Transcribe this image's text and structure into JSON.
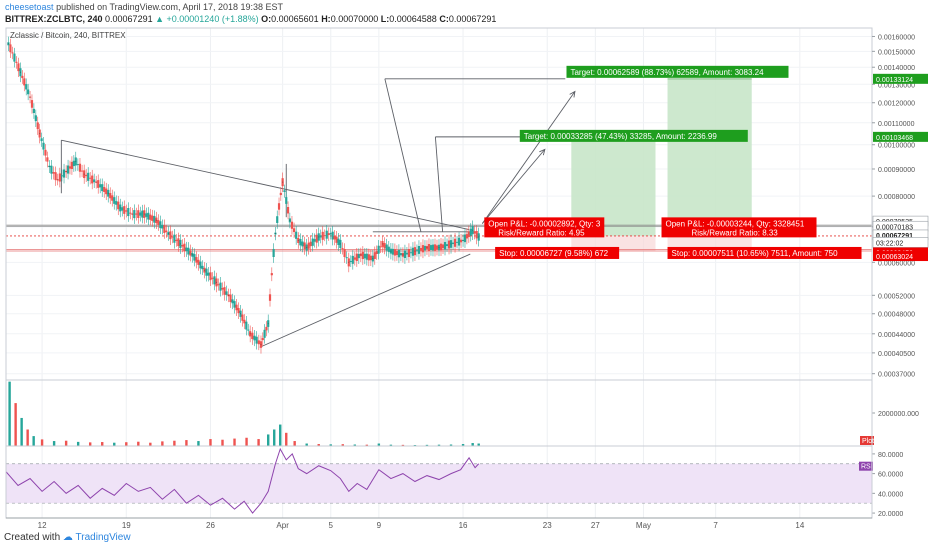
{
  "header": {
    "author": "cheesetoast",
    "published_text": "published on TradingView.com, April 17, 2018 19:38 EST",
    "ticker": "BITTREX:ZCLBTC, 240",
    "change": "▲ +0.00001240 (+1.88%)",
    "ohlc": {
      "o_label": "O:",
      "o": "0.00065601",
      "h_label": "H:",
      "h": "0.00070000",
      "l_label": "L:",
      "l": "0.00064588",
      "c_label": "C:",
      "c": "0.00067291"
    },
    "last": "0.00067291"
  },
  "pane_title": "Zclassic / Bitcoin, 240, BITTREX",
  "footer": {
    "created_with": "Created with",
    "brand": "TradingView"
  },
  "colors": {
    "up": "#26a69a",
    "down": "#ef5350",
    "profit_zone": "#c8e6c9",
    "stop_label": "#ef0000",
    "target_label": "#1e9e1e",
    "rsi_band": "#efe3f7",
    "rsi_line": "#8e44ad"
  },
  "chart_data": [
    {
      "type": "line",
      "title": "Zclassic / Bitcoin, 240, BITTREX",
      "ylim": [
        0.00036,
        0.00166
      ],
      "y_ticks": [
        "0.00160000",
        "0.00150000",
        "0.00140000",
        "0.00130000",
        "0.00120000",
        "0.00110000",
        "0.00100000",
        "0.00090000",
        "0.00080000",
        "0.00070000",
        "0.00060000",
        "0.00052000",
        "0.00048000",
        "0.00044000",
        "0.00040500",
        "0.00037000"
      ],
      "y_tick_values": [
        0.0016,
        0.0015,
        0.0014,
        0.0013,
        0.0012,
        0.0011,
        0.001,
        0.0009,
        0.0008,
        0.0007,
        0.0006,
        0.00052,
        0.00048,
        0.00044,
        0.000405,
        0.00037
      ],
      "x_ticks": [
        "12",
        "19",
        "26",
        "Apr",
        "5",
        "9",
        "16",
        "23",
        "27",
        "May",
        "7",
        "14"
      ],
      "x_tick_days": [
        12,
        19,
        26,
        32,
        36,
        40,
        47,
        54,
        58,
        62,
        68,
        75
      ],
      "x_note": "days counted from March 1, 2018",
      "price_labels": [
        {
          "text": "0.00133124",
          "value": 0.00133124,
          "kind": "target"
        },
        {
          "text": "0.00103468",
          "value": 0.00103468,
          "kind": "target"
        },
        {
          "text": "0.00070535",
          "value": 0.00070535,
          "kind": "neutral"
        },
        {
          "text": "0.00070183",
          "value": 0.00070183,
          "kind": "neutral"
        },
        {
          "text": "0.00067291",
          "value": 0.00067291,
          "kind": "last"
        },
        {
          "text": "03:22:02",
          "value": 0.00066,
          "kind": "timer"
        },
        {
          "text": "0.00063450",
          "value": 0.0006345,
          "kind": "stop"
        },
        {
          "text": "0.00063024",
          "value": 0.00063024,
          "kind": "stop"
        }
      ],
      "price_series": [
        {
          "day": 9.2,
          "value": 0.00155
        },
        {
          "day": 10.2,
          "value": 0.00137
        },
        {
          "day": 11,
          "value": 0.00123
        },
        {
          "day": 11.8,
          "value": 0.00105
        },
        {
          "day": 12.6,
          "value": 0.00091
        },
        {
          "day": 13.3,
          "value": 0.00086
        },
        {
          "day": 14,
          "value": 0.00089
        },
        {
          "day": 14.8,
          "value": 0.00093
        },
        {
          "day": 15.5,
          "value": 0.00088
        },
        {
          "day": 16.5,
          "value": 0.00085
        },
        {
          "day": 17.5,
          "value": 0.00081
        },
        {
          "day": 18.5,
          "value": 0.00076
        },
        {
          "day": 19.5,
          "value": 0.00074
        },
        {
          "day": 20.5,
          "value": 0.00074
        },
        {
          "day": 21.5,
          "value": 0.00072
        },
        {
          "day": 22.5,
          "value": 0.00068
        },
        {
          "day": 23.5,
          "value": 0.00065
        },
        {
          "day": 24.5,
          "value": 0.00062
        },
        {
          "day": 25.5,
          "value": 0.00058
        },
        {
          "day": 26.5,
          "value": 0.00055
        },
        {
          "day": 27.5,
          "value": 0.00052
        },
        {
          "day": 28.5,
          "value": 0.00048
        },
        {
          "day": 29.3,
          "value": 0.00044
        },
        {
          "day": 30.2,
          "value": 0.00042
        },
        {
          "day": 30.8,
          "value": 0.00046
        },
        {
          "day": 31.4,
          "value": 0.00068
        },
        {
          "day": 32,
          "value": 0.00085
        },
        {
          "day": 32.6,
          "value": 0.00072
        },
        {
          "day": 33.3,
          "value": 0.00066
        },
        {
          "day": 34,
          "value": 0.00064
        },
        {
          "day": 35,
          "value": 0.00067
        },
        {
          "day": 36,
          "value": 0.00068
        },
        {
          "day": 36.8,
          "value": 0.00065
        },
        {
          "day": 37.5,
          "value": 0.0006
        },
        {
          "day": 38.5,
          "value": 0.00062
        },
        {
          "day": 39.5,
          "value": 0.00061
        },
        {
          "day": 40.3,
          "value": 0.00065
        },
        {
          "day": 41,
          "value": 0.00063
        },
        {
          "day": 42,
          "value": 0.00062
        },
        {
          "day": 43,
          "value": 0.00063
        },
        {
          "day": 44,
          "value": 0.00064
        },
        {
          "day": 45,
          "value": 0.00064
        },
        {
          "day": 46,
          "value": 0.00065
        },
        {
          "day": 47,
          "value": 0.00066
        },
        {
          "day": 47.8,
          "value": 0.00069
        },
        {
          "day": 48.3,
          "value": 0.00067
        }
      ],
      "drawings": {
        "trend_lines": [
          {
            "from_day": 13.6,
            "from_value": 0.00102,
            "to_day": 47.5,
            "to_value": 0.000692
          },
          {
            "from_day": 30.1,
            "from_value": 0.000415,
            "to_day": 47.6,
            "to_value": 0.000622
          },
          {
            "from_day": 13.6,
            "from_value": 0.00081,
            "to_day": 13.6,
            "to_value": 0.00102
          },
          {
            "from_day": 32.3,
            "from_value": 0.00073,
            "to_day": 32.3,
            "to_value": 0.00092
          }
        ],
        "measure_lines": [
          {
            "from_day": 40.5,
            "from_value": 0.00133124,
            "to_day": 55.5,
            "to_value": 0.00133124
          },
          {
            "from_day": 40.5,
            "from_value": 0.00133124,
            "to_day": 43.5,
            "to_value": 0.000685
          },
          {
            "from_day": 44.7,
            "from_value": 0.00103468,
            "to_day": 51.8,
            "to_value": 0.00103468
          },
          {
            "from_day": 44.7,
            "from_value": 0.00103468,
            "to_day": 45.3,
            "to_value": 0.000685
          },
          {
            "from_day": 39.5,
            "from_value": 0.000685,
            "to_day": 48,
            "to_value": 0.000685
          }
        ],
        "arrows": [
          {
            "from_day": 48.6,
            "from_value": 0.00071,
            "to_day": 53.8,
            "to_value": 0.00098
          },
          {
            "from_day": 48.6,
            "from_value": 0.00071,
            "to_day": 56.3,
            "to_value": 0.00126
          }
        ],
        "positions": [
          {
            "entry_from_day": 48.5,
            "entry_to_day": 63,
            "entry": 0.00067291,
            "target": 0.00103468,
            "stop": 0.00063024,
            "profit_from_day": 56,
            "profit_to_day": 63
          },
          {
            "entry_from_day": 63,
            "entry_to_day": 75.5,
            "entry": 0.00067291,
            "target": 0.00133124,
            "stop": 0.0006345,
            "profit_from_day": 64,
            "profit_to_day": 71
          }
        ],
        "horizontal_levels": [
          0.00070535,
          0.00070183,
          0.00067291,
          0.0006345,
          0.00063024
        ]
      },
      "annotations": {
        "target_1": "Target: 0.00033285 (47.43%) 33285, Amount: 2236.99",
        "target_2": "Target: 0.00062589 (88.73%) 62589, Amount: 3083.24",
        "open_pl_1": "Open P&L: -0.00002892, Qty: 3",
        "rr_1": "Risk/Reward Ratio: 4.95",
        "open_pl_2": "Open P&L: -0.00003244, Qty: 3328451",
        "rr_2": "Risk/Reward Ratio: 8.33",
        "stop_1": "Stop: 0.00006727 (9.58%) 672",
        "stop_2": "Stop: 0.00007511 (10.65%) 7511, Amount: 750"
      }
    },
    {
      "type": "bar",
      "title": "",
      "y_tick": "2000000.000",
      "y_tick_value": 2000000,
      "ylim": [
        0,
        4000000
      ],
      "badge": "Plot",
      "volume": [
        {
          "day": 9.3,
          "value": 3900000,
          "up": true
        },
        {
          "day": 9.8,
          "value": 2600000,
          "up": false
        },
        {
          "day": 10.3,
          "value": 1700000,
          "up": true
        },
        {
          "day": 10.8,
          "value": 1000000,
          "up": false
        },
        {
          "day": 11.3,
          "value": 600000,
          "up": true
        },
        {
          "day": 12,
          "value": 400000,
          "up": false
        },
        {
          "day": 13,
          "value": 300000,
          "up": true
        },
        {
          "day": 14,
          "value": 320000,
          "up": false
        },
        {
          "day": 15,
          "value": 250000,
          "up": true
        },
        {
          "day": 16,
          "value": 220000,
          "up": false
        },
        {
          "day": 17,
          "value": 240000,
          "up": false
        },
        {
          "day": 18,
          "value": 200000,
          "up": true
        },
        {
          "day": 19,
          "value": 230000,
          "up": false
        },
        {
          "day": 20,
          "value": 260000,
          "up": false
        },
        {
          "day": 21,
          "value": 200000,
          "up": false
        },
        {
          "day": 22,
          "value": 280000,
          "up": false
        },
        {
          "day": 23,
          "value": 320000,
          "up": false
        },
        {
          "day": 24,
          "value": 360000,
          "up": false
        },
        {
          "day": 25,
          "value": 300000,
          "up": true
        },
        {
          "day": 26,
          "value": 420000,
          "up": false
        },
        {
          "day": 27,
          "value": 380000,
          "up": false
        },
        {
          "day": 28,
          "value": 450000,
          "up": false
        },
        {
          "day": 29,
          "value": 500000,
          "up": false
        },
        {
          "day": 30,
          "value": 420000,
          "up": false
        },
        {
          "day": 30.8,
          "value": 700000,
          "up": true
        },
        {
          "day": 31.3,
          "value": 1000000,
          "up": true
        },
        {
          "day": 31.8,
          "value": 1300000,
          "up": true
        },
        {
          "day": 32.3,
          "value": 800000,
          "up": false
        },
        {
          "day": 33,
          "value": 300000,
          "up": false
        },
        {
          "day": 34,
          "value": 150000,
          "up": true
        },
        {
          "day": 35,
          "value": 120000,
          "up": false
        },
        {
          "day": 36,
          "value": 100000,
          "up": true
        },
        {
          "day": 37,
          "value": 110000,
          "up": false
        },
        {
          "day": 38,
          "value": 90000,
          "up": true
        },
        {
          "day": 39,
          "value": 80000,
          "up": false
        },
        {
          "day": 40,
          "value": 150000,
          "up": true
        },
        {
          "day": 41,
          "value": 80000,
          "up": true
        },
        {
          "day": 42,
          "value": 70000,
          "up": false
        },
        {
          "day": 43,
          "value": 60000,
          "up": true
        },
        {
          "day": 44,
          "value": 70000,
          "up": true
        },
        {
          "day": 45,
          "value": 80000,
          "up": true
        },
        {
          "day": 46,
          "value": 90000,
          "up": true
        },
        {
          "day": 47,
          "value": 120000,
          "up": true
        },
        {
          "day": 47.8,
          "value": 180000,
          "up": true
        },
        {
          "day": 48.3,
          "value": 150000,
          "up": true
        }
      ]
    },
    {
      "type": "line",
      "title": "",
      "name": "RSI",
      "ylim": [
        15,
        88
      ],
      "y_ticks": [
        "80.0000",
        "60.0000",
        "40.0000",
        "20.0000"
      ],
      "y_tick_values": [
        80,
        60,
        40,
        20
      ],
      "band": [
        30,
        70
      ],
      "rsi": [
        {
          "day": 9,
          "value": 62
        },
        {
          "day": 10,
          "value": 48
        },
        {
          "day": 11,
          "value": 55
        },
        {
          "day": 12,
          "value": 42
        },
        {
          "day": 13,
          "value": 52
        },
        {
          "day": 14,
          "value": 40
        },
        {
          "day": 15,
          "value": 48
        },
        {
          "day": 16,
          "value": 35
        },
        {
          "day": 17,
          "value": 45
        },
        {
          "day": 18,
          "value": 38
        },
        {
          "day": 19,
          "value": 50
        },
        {
          "day": 20,
          "value": 42
        },
        {
          "day": 21,
          "value": 46
        },
        {
          "day": 22,
          "value": 34
        },
        {
          "day": 23,
          "value": 44
        },
        {
          "day": 24,
          "value": 30
        },
        {
          "day": 25,
          "value": 38
        },
        {
          "day": 26,
          "value": 28
        },
        {
          "day": 27,
          "value": 35
        },
        {
          "day": 28,
          "value": 24
        },
        {
          "day": 28.8,
          "value": 32
        },
        {
          "day": 29.5,
          "value": 20
        },
        {
          "day": 30.2,
          "value": 30
        },
        {
          "day": 30.8,
          "value": 42
        },
        {
          "day": 31.4,
          "value": 70
        },
        {
          "day": 31.8,
          "value": 85
        },
        {
          "day": 32.3,
          "value": 74
        },
        {
          "day": 32.8,
          "value": 80
        },
        {
          "day": 33.3,
          "value": 65
        },
        {
          "day": 34,
          "value": 60
        },
        {
          "day": 35,
          "value": 68
        },
        {
          "day": 36,
          "value": 63
        },
        {
          "day": 36.8,
          "value": 55
        },
        {
          "day": 37.5,
          "value": 42
        },
        {
          "day": 38.2,
          "value": 50
        },
        {
          "day": 39,
          "value": 44
        },
        {
          "day": 40,
          "value": 64
        },
        {
          "day": 41,
          "value": 55
        },
        {
          "day": 42,
          "value": 60
        },
        {
          "day": 43,
          "value": 52
        },
        {
          "day": 44,
          "value": 58
        },
        {
          "day": 45,
          "value": 54
        },
        {
          "day": 46,
          "value": 60
        },
        {
          "day": 46.8,
          "value": 64
        },
        {
          "day": 47.5,
          "value": 76
        },
        {
          "day": 48,
          "value": 66
        },
        {
          "day": 48.3,
          "value": 70
        }
      ]
    }
  ]
}
